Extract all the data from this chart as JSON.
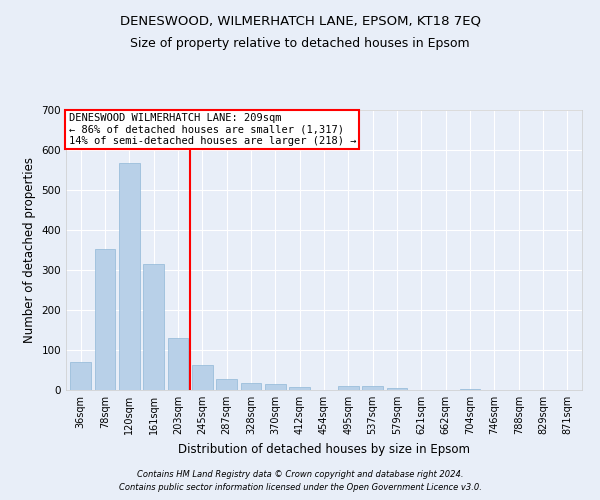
{
  "title1": "DENESWOOD, WILMERHATCH LANE, EPSOM, KT18 7EQ",
  "title2": "Size of property relative to detached houses in Epsom",
  "xlabel": "Distribution of detached houses by size in Epsom",
  "ylabel": "Number of detached properties",
  "footer1": "Contains HM Land Registry data © Crown copyright and database right 2024.",
  "footer2": "Contains public sector information licensed under the Open Government Licence v3.0.",
  "annotation_line1": "DENESWOOD WILMERHATCH LANE: 209sqm",
  "annotation_line2": "← 86% of detached houses are smaller (1,317)",
  "annotation_line3": "14% of semi-detached houses are larger (218) →",
  "bar_labels": [
    "36sqm",
    "78sqm",
    "120sqm",
    "161sqm",
    "203sqm",
    "245sqm",
    "287sqm",
    "328sqm",
    "370sqm",
    "412sqm",
    "454sqm",
    "495sqm",
    "537sqm",
    "579sqm",
    "621sqm",
    "662sqm",
    "704sqm",
    "746sqm",
    "788sqm",
    "829sqm",
    "871sqm"
  ],
  "bar_values": [
    70,
    352,
    568,
    315,
    130,
    62,
    27,
    17,
    16,
    8,
    0,
    10,
    10,
    5,
    0,
    0,
    3,
    0,
    0,
    0,
    0
  ],
  "bar_color": "#b8d0e8",
  "bar_edge_color": "#90b8d8",
  "red_line_x": 4.5,
  "ylim": [
    0,
    700
  ],
  "yticks": [
    0,
    100,
    200,
    300,
    400,
    500,
    600,
    700
  ],
  "bg_color": "#e8eef8",
  "grid_color": "#ffffff",
  "title_fontsize": 9.5,
  "subtitle_fontsize": 9,
  "label_fontsize": 8.5,
  "tick_fontsize": 7,
  "ann_fontsize": 7.5,
  "footer_fontsize": 6
}
